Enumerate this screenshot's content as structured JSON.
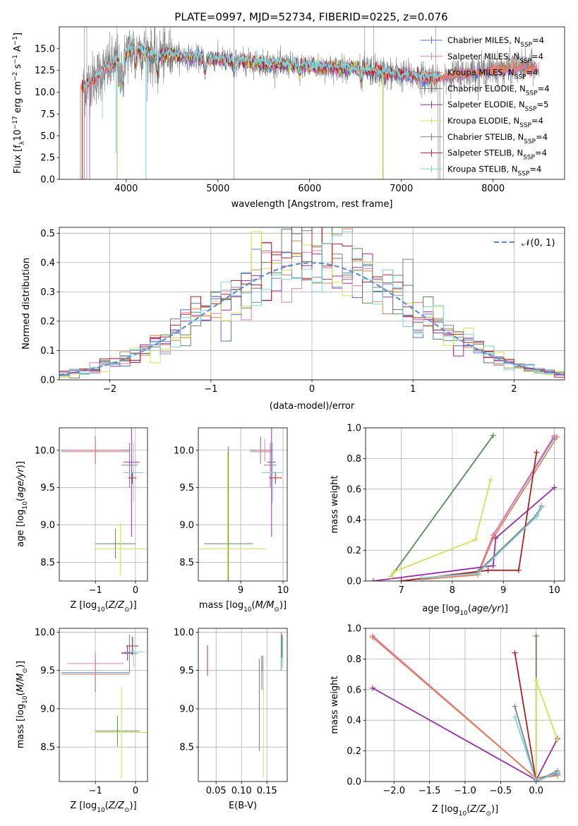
{
  "figure_title": "PLATE=0997, MJD=52734, FIBERID=0225, z=0.076",
  "colors": {
    "Chabrier MILES": "#4878cf",
    "Salpeter MILES": "#e377c2",
    "Kroupa MILES": "#dd8452",
    "Chabrier ELODIE": "#5a8a5a",
    "Salpeter ELODIE": "#9a2ea8",
    "Kroupa ELODIE": "#d4e157",
    "Chabrier STELIB": "#808080",
    "Salpeter STELIB": "#b22222",
    "Kroupa STELIB": "#7fd3dc",
    "normal": "#5b8fd6"
  },
  "chart_data": [
    {
      "type": "line",
      "title": "PLATE=0997, MJD=52734, FIBERID=0225, z=0.076",
      "xlabel": "wavelength [Angstrom, rest frame]",
      "ylabel": "Flux [fλ10⁻¹⁷ erg cm⁻² s⁻¹ A⁻¹]",
      "xlim": [
        3270,
        8780
      ],
      "ylim": [
        0,
        17.5
      ],
      "xticks": [
        4000,
        5000,
        6000,
        7000,
        8000
      ],
      "yticks": [
        0.0,
        2.5,
        5.0,
        7.5,
        10.0,
        12.5,
        15.0
      ],
      "grid": false,
      "legend_position": "right",
      "legend": [
        "Chabrier MILES, N_SSP=4",
        "Salpeter MILES, N_SSP=4",
        "Kroupa MILES, N_SSP=4",
        "Chabrier ELODIE, N_SSP=4",
        "Salpeter ELODIE, N_SSP=5",
        "Kroupa ELODIE, N_SSP=4",
        "Chabrier STELIB, N_SSP=4",
        "Salpeter STELIB, N_SSP=4",
        "Kroupa STELIB, N_SSP=4"
      ],
      "continuum": {
        "x": [
          3550,
          3600,
          3700,
          3800,
          3900,
          4000,
          4100,
          4200,
          4300,
          4500,
          4700,
          5000,
          5500,
          6000,
          6500,
          7000,
          7300,
          7500,
          7800,
          8000,
          8300,
          8500
        ],
        "y": [
          10.5,
          11.2,
          12.0,
          12.8,
          13.5,
          14.5,
          15.2,
          14.6,
          14.2,
          14.3,
          14.0,
          13.8,
          13.3,
          13.0,
          12.7,
          12.0,
          11.6,
          11.9,
          12.4,
          12.6,
          12.9,
          12.8
        ]
      }
    },
    {
      "type": "line",
      "title": "",
      "xlabel": "(data-model)/error",
      "ylabel": "Normed distribution",
      "xlim": [
        -2.5,
        2.5
      ],
      "ylim": [
        0,
        0.52
      ],
      "xticks": [
        -2,
        -1,
        0,
        1,
        2
      ],
      "yticks": [
        0.0,
        0.1,
        0.2,
        0.3,
        0.4,
        0.5
      ],
      "grid": true,
      "legend_position": "top-right",
      "legend": [
        "N(0,1)"
      ],
      "bin_width": 0.1
    },
    {
      "type": "scatter",
      "title": "",
      "xlabel": "Z [log10(Z/Z⊙)]",
      "ylabel": "age  [log10(age/yr)]",
      "xlim": [
        -1.9,
        0.3
      ],
      "ylim": [
        8.25,
        10.3
      ],
      "xticks": [
        -1,
        0
      ],
      "yticks": [
        8.5,
        9.0,
        9.5,
        10.0
      ],
      "grid": true,
      "points": [
        {
          "model": "Chabrier MILES",
          "x": -1.0,
          "y": 10.0,
          "xerr": 0.85,
          "yerr": 0.18
        },
        {
          "model": "Salpeter MILES",
          "x": -1.0,
          "y": 10.0,
          "xerr": 0.7,
          "yerr": 0.15
        },
        {
          "model": "Kroupa MILES",
          "x": -1.0,
          "y": 9.98,
          "xerr": 0.85,
          "yerr": 0.15
        },
        {
          "model": "Chabrier ELODIE",
          "x": -0.5,
          "y": 8.75,
          "xerr": 0.5,
          "yerr": 0.2
        },
        {
          "model": "Salpeter ELODIE",
          "x": -0.1,
          "y": 9.84,
          "xerr": 0.2,
          "yerr": 1.0
        },
        {
          "model": "Kroupa ELODIE",
          "x": -0.38,
          "y": 8.68,
          "xerr": 0.65,
          "yerr": 0.35
        },
        {
          "model": "Chabrier STELIB",
          "x": -0.15,
          "y": 9.8,
          "xerr": 0.2,
          "yerr": 0.3
        },
        {
          "model": "Salpeter STELIB",
          "x": -0.08,
          "y": 9.63,
          "xerr": 0.1,
          "yerr": 0.08
        },
        {
          "model": "Kroupa STELIB",
          "x": -0.05,
          "y": 9.7,
          "xerr": 0.25,
          "yerr": 0.4
        }
      ]
    },
    {
      "type": "scatter",
      "title": "",
      "xlabel": "mass [log10(M/M⊙)]",
      "ylabel": "",
      "xlim": [
        8.0,
        10.1
      ],
      "ylim": [
        8.25,
        10.3
      ],
      "xticks": [
        9,
        10
      ],
      "yticks": [
        8.5,
        9.0,
        9.5,
        10.0
      ],
      "grid": true,
      "points": [
        {
          "model": "Chabrier MILES",
          "x": 9.47,
          "y": 10.0,
          "xerr": 0.25,
          "yerr": 0.18
        },
        {
          "model": "Salpeter MILES",
          "x": 9.57,
          "y": 10.0,
          "xerr": 0.2,
          "yerr": 0.15
        },
        {
          "model": "Kroupa MILES",
          "x": 9.47,
          "y": 9.98,
          "xerr": 0.25,
          "yerr": 0.15
        },
        {
          "model": "Chabrier ELODIE",
          "x": 8.71,
          "y": 8.75,
          "xerr": 0.58,
          "yerr": 1.3
        },
        {
          "model": "Salpeter ELODIE",
          "x": 9.73,
          "y": 9.84,
          "xerr": 0.1,
          "yerr": 1.0
        },
        {
          "model": "Kroupa ELODIE",
          "x": 8.69,
          "y": 8.68,
          "xerr": 0.9,
          "yerr": 1.3
        },
        {
          "model": "Chabrier STELIB",
          "x": 9.7,
          "y": 9.8,
          "xerr": 0.15,
          "yerr": 0.3
        },
        {
          "model": "Salpeter STELIB",
          "x": 9.82,
          "y": 9.63,
          "xerr": 0.15,
          "yerr": 0.08
        },
        {
          "model": "Kroupa STELIB",
          "x": 9.75,
          "y": 9.7,
          "xerr": 0.25,
          "yerr": 0.4
        }
      ]
    },
    {
      "type": "line",
      "title": "",
      "xlabel": "age  [log10(age/yr)]",
      "ylabel": "mass weight",
      "xlim": [
        6.3,
        10.2
      ],
      "ylim": [
        0,
        1.0
      ],
      "xticks": [
        7,
        8,
        9,
        10
      ],
      "yticks": [
        0.0,
        0.2,
        0.4,
        0.6,
        0.8,
        1.0
      ],
      "grid": true,
      "series": [
        {
          "model": "Chabrier MILES",
          "x": [
            7.4,
            8.5,
            8.8,
            10.0
          ],
          "y": [
            0.02,
            0.05,
            0.3,
            0.94
          ]
        },
        {
          "model": "Salpeter MILES",
          "x": [
            7.4,
            8.5,
            8.8,
            10.0
          ],
          "y": [
            0.02,
            0.05,
            0.3,
            0.95
          ]
        },
        {
          "model": "Kroupa MILES",
          "x": [
            7.4,
            8.5,
            8.8,
            10.05
          ],
          "y": [
            0.01,
            0.04,
            0.28,
            0.94
          ]
        },
        {
          "model": "Chabrier ELODIE",
          "x": [
            6.8,
            8.8
          ],
          "y": [
            0.03,
            0.95
          ]
        },
        {
          "model": "Salpeter ELODIE",
          "x": [
            6.45,
            8.8,
            8.85,
            10.0
          ],
          "y": [
            0.0,
            0.1,
            0.28,
            0.61
          ]
        },
        {
          "model": "Kroupa ELODIE",
          "x": [
            6.8,
            6.85,
            8.45,
            8.75
          ],
          "y": [
            0.03,
            0.06,
            0.27,
            0.66
          ]
        },
        {
          "model": "Chabrier STELIB",
          "x": [
            7.0,
            8.5,
            9.65,
            9.75
          ],
          "y": [
            0.0,
            0.06,
            0.43,
            0.49
          ]
        },
        {
          "model": "Salpeter STELIB",
          "x": [
            7.0,
            8.7,
            9.3,
            9.65
          ],
          "y": [
            0.0,
            0.07,
            0.07,
            0.84
          ]
        },
        {
          "model": "Kroupa STELIB",
          "x": [
            7.4,
            8.5,
            9.65,
            9.75
          ],
          "y": [
            0.02,
            0.05,
            0.42,
            0.48
          ]
        }
      ]
    },
    {
      "type": "scatter",
      "title": "",
      "xlabel": "Z [log10(Z/Z⊙)]",
      "ylabel": "mass [log10(M/M⊙)]",
      "xlim": [
        -1.9,
        0.3
      ],
      "ylim": [
        8.05,
        10.05
      ],
      "xticks": [
        -1,
        0
      ],
      "yticks": [
        8.5,
        9.0,
        9.5,
        10.0
      ],
      "grid": true,
      "points": [
        {
          "model": "Chabrier MILES",
          "x": -1.0,
          "y": 9.47,
          "xerr": 0.85,
          "yerr": 0.25
        },
        {
          "model": "Salpeter MILES",
          "x": -1.0,
          "y": 9.59,
          "xerr": 0.7,
          "yerr": 0.15
        },
        {
          "model": "Kroupa MILES",
          "x": -1.0,
          "y": 9.45,
          "xerr": 0.85,
          "yerr": 0.2
        },
        {
          "model": "Chabrier ELODIE",
          "x": -0.45,
          "y": 8.71,
          "xerr": 0.55,
          "yerr": 0.2
        },
        {
          "model": "Salpeter ELODIE",
          "x": -0.2,
          "y": 9.73,
          "xerr": 0.15,
          "yerr": 0.1
        },
        {
          "model": "Kroupa ELODIE",
          "x": -0.35,
          "y": 8.69,
          "xerr": 0.65,
          "yerr": 0.6
        },
        {
          "model": "Chabrier STELIB",
          "x": -0.15,
          "y": 9.72,
          "xerr": 0.2,
          "yerr": 0.25
        },
        {
          "model": "Salpeter STELIB",
          "x": -0.08,
          "y": 9.82,
          "xerr": 0.15,
          "yerr": 0.12
        },
        {
          "model": "Kroupa STELIB",
          "x": -0.05,
          "y": 9.74,
          "xerr": 0.25,
          "yerr": 0.2
        }
      ]
    },
    {
      "type": "scatter",
      "title": "",
      "xlabel": "E(B-V)",
      "ylabel": "",
      "xlim": [
        0.015,
        0.19
      ],
      "ylim": [
        8.05,
        10.05
      ],
      "xticks": [
        0.05,
        0.1,
        0.15
      ],
      "yticks": [
        8.5,
        9.0,
        9.5,
        10.0
      ],
      "grid": true,
      "points": [
        {
          "model": "Chabrier MILES",
          "x": 0.14,
          "y": 9.47,
          "yerr": 0.22
        },
        {
          "model": "Salpeter MILES",
          "x": 0.141,
          "y": 9.59,
          "yerr": 0.1
        },
        {
          "model": "Kroupa MILES",
          "x": 0.143,
          "y": 9.45,
          "yerr": 0.22
        },
        {
          "model": "Chabrier ELODIE",
          "x": 0.135,
          "y": 9.05,
          "yerr": 0.6
        },
        {
          "model": "Salpeter ELODIE",
          "x": 0.033,
          "y": 9.63,
          "yerr": 0.2
        },
        {
          "model": "Kroupa ELODIE",
          "x": 0.143,
          "y": 8.9,
          "yerr": 0.8
        },
        {
          "model": "Chabrier STELIB",
          "x": 0.178,
          "y": 9.75,
          "yerr": 0.25
        },
        {
          "model": "Salpeter STELIB",
          "x": 0.18,
          "y": 9.82,
          "yerr": 0.15
        },
        {
          "model": "Kroupa STELIB",
          "x": 0.181,
          "y": 9.74,
          "yerr": 0.2
        }
      ]
    },
    {
      "type": "line",
      "title": "",
      "xlabel": "Z [log10(Z/Z⊙)]",
      "ylabel": "mass weight",
      "xlim": [
        -2.4,
        0.4
      ],
      "ylim": [
        0,
        1.0
      ],
      "xticks": [
        -2.0,
        -1.5,
        -1.0,
        -0.5,
        0.0
      ],
      "yticks": [
        0.0,
        0.2,
        0.4,
        0.6,
        0.8,
        1.0
      ],
      "grid": true,
      "series": [
        {
          "model": "Chabrier MILES",
          "x": [
            -2.3,
            0.0,
            0.3
          ],
          "y": [
            0.95,
            0.02,
            0.05
          ]
        },
        {
          "model": "Salpeter MILES",
          "x": [
            -2.3,
            0.0,
            0.3
          ],
          "y": [
            0.95,
            0.02,
            0.04
          ]
        },
        {
          "model": "Kroupa MILES",
          "x": [
            -2.3,
            0.0,
            0.3
          ],
          "y": [
            0.94,
            0.02,
            0.04
          ]
        },
        {
          "model": "Chabrier ELODIE",
          "x": [
            0.0,
            0.0
          ],
          "y": [
            0.0,
            0.95
          ]
        },
        {
          "model": "Salpeter ELODIE",
          "x": [
            -2.3,
            0.0,
            0.3
          ],
          "y": [
            0.61,
            0.01,
            0.28
          ]
        },
        {
          "model": "Kroupa ELODIE",
          "x": [
            0.0,
            0.0,
            0.3
          ],
          "y": [
            0.02,
            0.66,
            0.27
          ]
        },
        {
          "model": "Chabrier STELIB",
          "x": [
            -0.3,
            0.0,
            0.3
          ],
          "y": [
            0.49,
            0.0,
            0.07
          ]
        },
        {
          "model": "Salpeter STELIB",
          "x": [
            -0.3,
            0.0,
            0.3
          ],
          "y": [
            0.84,
            0.0,
            0.06
          ]
        },
        {
          "model": "Kroupa STELIB",
          "x": [
            -0.3,
            0.0,
            0.3
          ],
          "y": [
            0.42,
            0.0,
            0.06
          ]
        }
      ]
    }
  ]
}
